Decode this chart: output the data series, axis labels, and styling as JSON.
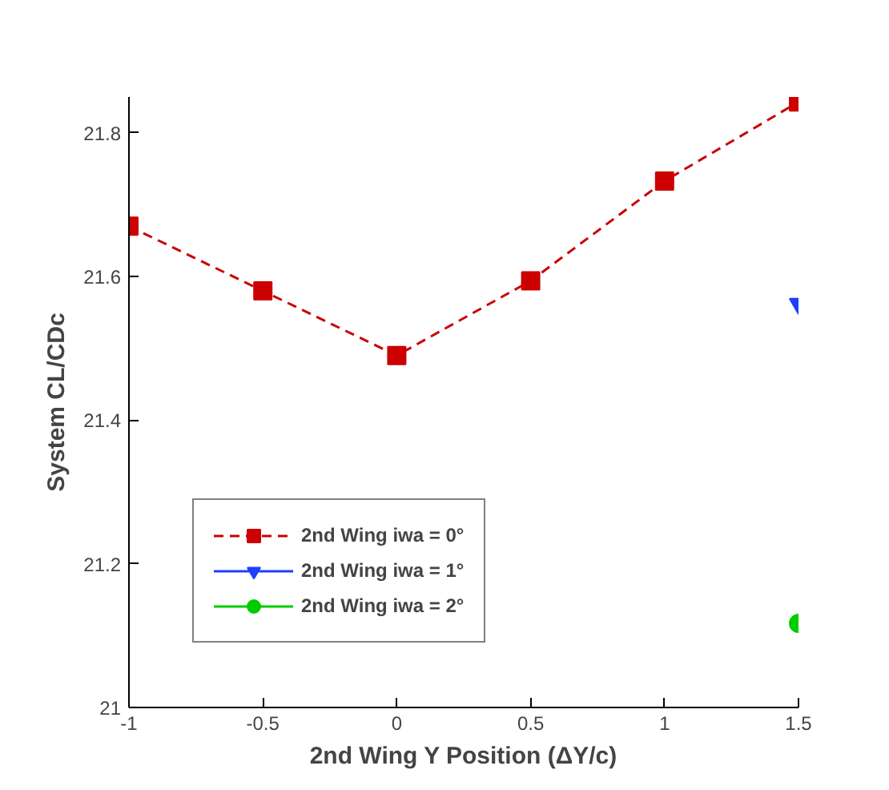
{
  "chart_data": {
    "type": "line",
    "xlabel": "2nd Wing Y Position (ΔY/c)",
    "ylabel": "System CL/CDc",
    "xlim": [
      -1,
      1.5
    ],
    "xticks": [
      -1,
      -0.5,
      0,
      0.5,
      1,
      1.5
    ],
    "ylim": [
      21,
      21.85
    ],
    "yticks": [
      21,
      21.2,
      21.4,
      21.6,
      21.8
    ],
    "grid": false,
    "legend": "bottom left",
    "series": [
      {
        "name": "2nd Wing iwa = 0°",
        "color": "#cc0000",
        "marker": "square",
        "line_style": "dashed",
        "x": [
          -1,
          -0.5,
          0,
          0.5,
          1,
          1.5
        ],
        "values": [
          21.67,
          21.58,
          21.49,
          21.594,
          21.733,
          21.843
        ]
      },
      {
        "name": "2nd Wing iwa = 1°",
        "color": "#1f3fff",
        "marker": "triangle",
        "line_style": "solid",
        "x": [
          1.5
        ],
        "values": [
          21.562
        ]
      },
      {
        "name": "2nd Wing iwa = 2°",
        "color": "#00cc00",
        "marker": "circle",
        "line_style": "solid",
        "x": [
          1.5
        ],
        "values": [
          21.117
        ]
      }
    ]
  }
}
